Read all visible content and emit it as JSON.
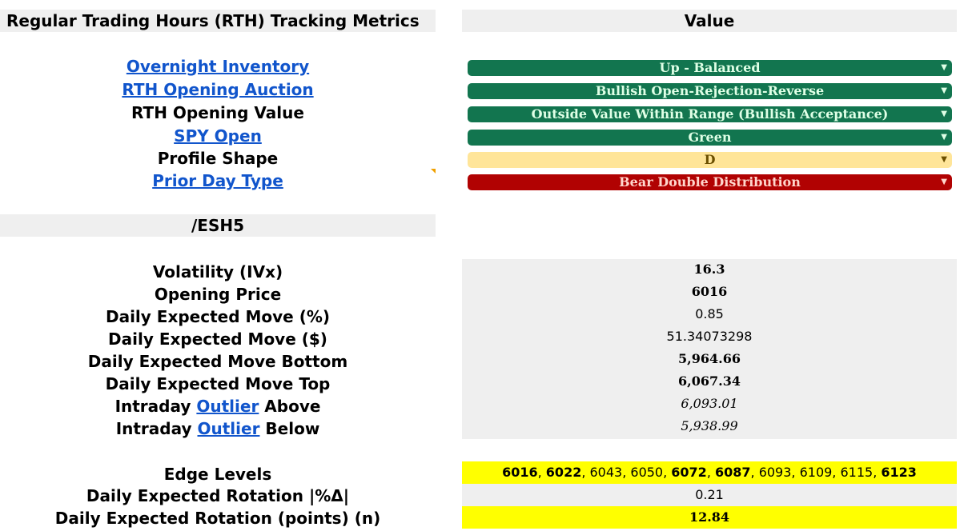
{
  "header": {
    "title": "Regular Trading Hours (RTH) Tracking Metrics",
    "value_col": "Value"
  },
  "rth": [
    {
      "label": "Overnight Inventory",
      "link": true,
      "value": "Up - Balanced",
      "color": "green"
    },
    {
      "label": "RTH Opening Auction",
      "link": true,
      "value": "Bullish Open-Rejection-Reverse",
      "color": "green"
    },
    {
      "label": "RTH Opening Value",
      "link": false,
      "value": "Outside Value Within Range (Bullish Acceptance)",
      "color": "green"
    },
    {
      "label": "SPY Open",
      "link": true,
      "value": "Green",
      "color": "green"
    },
    {
      "label": "Profile Shape",
      "link": false,
      "value": "D",
      "color": "tan"
    },
    {
      "label": "Prior Day Type",
      "link": true,
      "value": "Bear Double Distribution",
      "color": "red"
    }
  ],
  "symbol": "/ESH5",
  "metrics": {
    "volatility": {
      "label": "Volatility (IVx)",
      "value": "16.3"
    },
    "opening_price": {
      "label": "Opening Price",
      "value": "6016"
    },
    "dem_pct": {
      "label": "Daily Expected Move (%)",
      "value": "0.85"
    },
    "dem_usd": {
      "label": "Daily Expected Move ($)",
      "value": "51.34073298"
    },
    "dem_bottom": {
      "label": "Daily Expected Move Bottom",
      "value": "5,964.66"
    },
    "dem_top": {
      "label": "Daily Expected Move Top",
      "value": "6,067.34"
    },
    "outlier_above": {
      "pre": "Intraday",
      "link": "Outlier",
      "post": "Above",
      "value": "6,093.01"
    },
    "outlier_below": {
      "pre": "Intraday",
      "link": "Outlier",
      "post": "Below",
      "value": "5,938.99"
    }
  },
  "edge": {
    "label": "Edge Levels",
    "levels": [
      "6016",
      "6022",
      "6043",
      "6050",
      "6072",
      "6087",
      "6093",
      "6109",
      "6115",
      "6123"
    ],
    "sep": ", "
  },
  "rotation": {
    "pct_label": "Daily Expected Rotation |%Δ|",
    "pct_value": "0.21",
    "pts_label": "Daily Expected Rotation (points) (n)",
    "pts_value": "12.84"
  },
  "colors": {
    "green": "#12754f",
    "tan": "#ffe599",
    "red": "#b10202",
    "highlight": "#ffff00",
    "link": "#1155cc"
  },
  "icons": {
    "dropdown": "caret-down-icon"
  }
}
